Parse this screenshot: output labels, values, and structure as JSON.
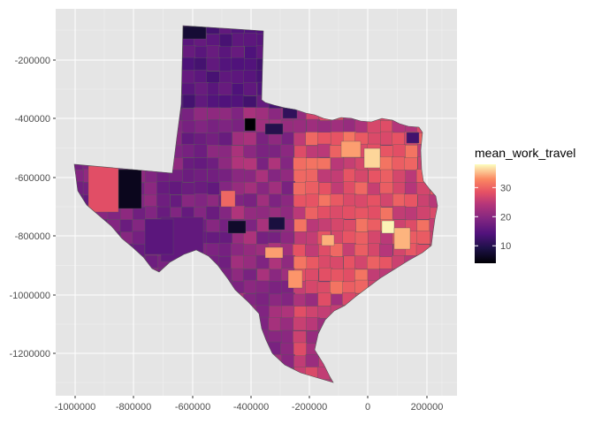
{
  "chart_data": {
    "type": "choropleth",
    "x_ticks": [
      "-1000000",
      "-800000",
      "-600000",
      "-400000",
      "-200000",
      "0",
      "200000"
    ],
    "y_ticks": [
      "-200000",
      "-400000",
      "-600000",
      "-800000",
      "-1000000",
      "-1200000"
    ],
    "legend": {
      "title": "mean_work_travel",
      "labels": [
        "10",
        "20",
        "30"
      ],
      "min": 4,
      "max": 38
    },
    "palette": "magma",
    "panel_background": "#e5e5e5",
    "grid": true
  }
}
